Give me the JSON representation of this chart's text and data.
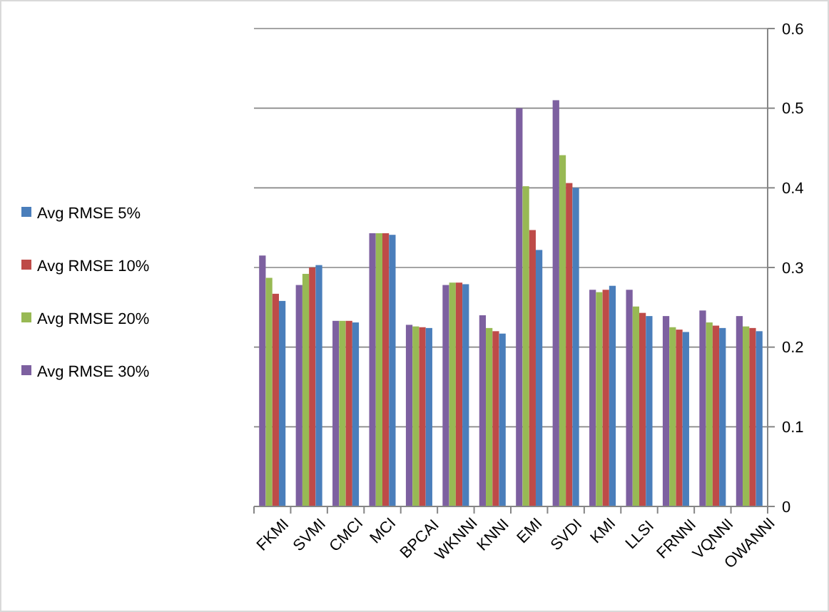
{
  "chart_data": {
    "type": "bar",
    "categories": [
      "FKMI",
      "SVMI",
      "CMCI",
      "MCI",
      "BPCAI",
      "WKNNI",
      "KNNI",
      "EMI",
      "SVDI",
      "KMI",
      "LLSI",
      "FRNNI",
      "VQNNI",
      "OWANNI"
    ],
    "series": [
      {
        "name": "Avg RMSE 30%",
        "color": "#7d60a0",
        "values": [
          0.315,
          0.278,
          0.233,
          0.343,
          0.228,
          0.278,
          0.24,
          0.5,
          0.51,
          0.272,
          0.272,
          0.239,
          0.246,
          0.239
        ]
      },
      {
        "name": "Avg RMSE 20%",
        "color": "#98b954",
        "values": [
          0.287,
          0.292,
          0.233,
          0.343,
          0.226,
          0.281,
          0.224,
          0.402,
          0.441,
          0.269,
          0.251,
          0.225,
          0.231,
          0.226
        ]
      },
      {
        "name": "Avg RMSE 10%",
        "color": "#be4b48",
        "values": [
          0.267,
          0.3,
          0.233,
          0.343,
          0.225,
          0.281,
          0.22,
          0.347,
          0.406,
          0.272,
          0.243,
          0.222,
          0.227,
          0.224
        ]
      },
      {
        "name": "Avg RMSE 5%",
        "color": "#4a7ebb",
        "values": [
          0.258,
          0.303,
          0.231,
          0.341,
          0.224,
          0.279,
          0.217,
          0.322,
          0.4,
          0.277,
          0.239,
          0.219,
          0.224,
          0.22
        ]
      }
    ],
    "ylim": [
      0,
      0.6
    ],
    "yticks": [
      {
        "value": 0,
        "label": "0"
      },
      0.1,
      0.2,
      0.3,
      0.4,
      0.5,
      0.6
    ],
    "grid": "y",
    "legend": "left"
  }
}
